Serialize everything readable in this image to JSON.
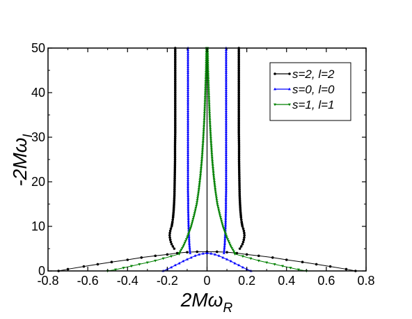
{
  "chart_data": {
    "type": "scatter",
    "title": "",
    "xlabel": "2Mω",
    "xlabel_sub": "R",
    "ylabel": "-2Mω",
    "ylabel_sub": "I",
    "xlim": [
      -0.8,
      0.8
    ],
    "ylim": [
      0,
      50
    ],
    "x_ticks": [
      -0.8,
      -0.6,
      -0.4,
      -0.2,
      0,
      0.2,
      0.4,
      0.6,
      0.8
    ],
    "x_tick_labels": [
      "-0.8",
      "-0.6",
      "-0.4",
      "-0.2",
      "0",
      "0.2",
      "0.4",
      "0.6",
      "0.8"
    ],
    "y_ticks": [
      0,
      10,
      20,
      30,
      40,
      50
    ],
    "y_tick_labels": [
      "0",
      "10",
      "20",
      "30",
      "40",
      "50"
    ],
    "grid": false,
    "legend_position": "top-right",
    "series": [
      {
        "name": "s=2, l=2",
        "color": "#000000",
        "marker": "circle",
        "branch_points": [
          [
            0.747,
            0.0
          ],
          [
            0.7,
            0.4
          ],
          [
            0.62,
            1.0
          ],
          [
            0.55,
            1.5
          ],
          [
            0.48,
            2.0
          ],
          [
            0.4,
            2.5
          ],
          [
            0.33,
            3.0
          ],
          [
            0.26,
            3.4
          ],
          [
            0.2,
            3.7
          ],
          [
            0.15,
            4.0
          ],
          [
            0.1,
            4.2
          ],
          [
            0.05,
            4.3
          ],
          [
            0.0,
            4.3
          ]
        ],
        "curve_points": [
          [
            0.165,
            5.0
          ],
          [
            0.172,
            5.5
          ],
          [
            0.178,
            6.0
          ],
          [
            0.182,
            6.5
          ],
          [
            0.185,
            7.0
          ],
          [
            0.187,
            7.5
          ],
          [
            0.188,
            8.0
          ],
          [
            0.187,
            8.5
          ],
          [
            0.185,
            9.0
          ],
          [
            0.182,
            9.5
          ],
          [
            0.178,
            10.0
          ],
          [
            0.174,
            11.0
          ],
          [
            0.171,
            12.0
          ],
          [
            0.168,
            13.5
          ],
          [
            0.166,
            15.0
          ],
          [
            0.164,
            17.0
          ],
          [
            0.163,
            19.5
          ],
          [
            0.162,
            22.0
          ],
          [
            0.161,
            25.0
          ],
          [
            0.161,
            28.0
          ],
          [
            0.16,
            31.0
          ],
          [
            0.16,
            35.0
          ],
          [
            0.16,
            40.0
          ],
          [
            0.16,
            45.0
          ],
          [
            0.16,
            50.0
          ]
        ]
      },
      {
        "name": "s=0, l=0",
        "color": "#0000ff",
        "marker": "triangle-up",
        "branch_points": [
          [
            0.221,
            0.0
          ],
          [
            0.2,
            0.4
          ],
          [
            0.18,
            0.8
          ],
          [
            0.16,
            1.3
          ],
          [
            0.14,
            1.7
          ],
          [
            0.12,
            2.2
          ],
          [
            0.1,
            2.6
          ],
          [
            0.08,
            3.0
          ],
          [
            0.06,
            3.4
          ],
          [
            0.04,
            3.7
          ],
          [
            0.02,
            3.9
          ],
          [
            0.0,
            4.0
          ]
        ],
        "curve_points": [
          [
            0.085,
            4.0
          ],
          [
            0.089,
            6.0
          ],
          [
            0.091,
            8.0
          ],
          [
            0.093,
            10.0
          ],
          [
            0.094,
            12.0
          ],
          [
            0.095,
            14.0
          ],
          [
            0.095,
            16.0
          ],
          [
            0.096,
            18.0
          ],
          [
            0.096,
            20.0
          ],
          [
            0.096,
            23.0
          ],
          [
            0.096,
            26.0
          ],
          [
            0.096,
            29.0
          ],
          [
            0.096,
            32.0
          ],
          [
            0.096,
            35.0
          ],
          [
            0.096,
            38.0
          ],
          [
            0.096,
            41.0
          ],
          [
            0.096,
            44.0
          ],
          [
            0.096,
            47.0
          ],
          [
            0.096,
            50.0
          ]
        ]
      },
      {
        "name": "s=1, l=1",
        "color": "#008000",
        "marker": "triangle-down",
        "branch_points": [
          [
            0.5,
            0.0
          ],
          [
            0.46,
            0.3
          ],
          [
            0.42,
            0.7
          ],
          [
            0.38,
            1.1
          ],
          [
            0.34,
            1.5
          ],
          [
            0.3,
            1.9
          ],
          [
            0.26,
            2.3
          ],
          [
            0.22,
            2.8
          ],
          [
            0.18,
            3.3
          ],
          [
            0.14,
            3.8
          ]
        ],
        "curve_points": [
          [
            0.14,
            4.0
          ],
          [
            0.12,
            5.5
          ],
          [
            0.1,
            7.5
          ],
          [
            0.08,
            10.0
          ],
          [
            0.065,
            12.5
          ],
          [
            0.052,
            15.0
          ],
          [
            0.042,
            18.0
          ],
          [
            0.033,
            21.5
          ],
          [
            0.026,
            25.0
          ],
          [
            0.02,
            29.0
          ],
          [
            0.015,
            33.0
          ],
          [
            0.011,
            37.0
          ],
          [
            0.008,
            41.0
          ],
          [
            0.005,
            45.0
          ],
          [
            0.003,
            50.0
          ]
        ]
      }
    ]
  }
}
